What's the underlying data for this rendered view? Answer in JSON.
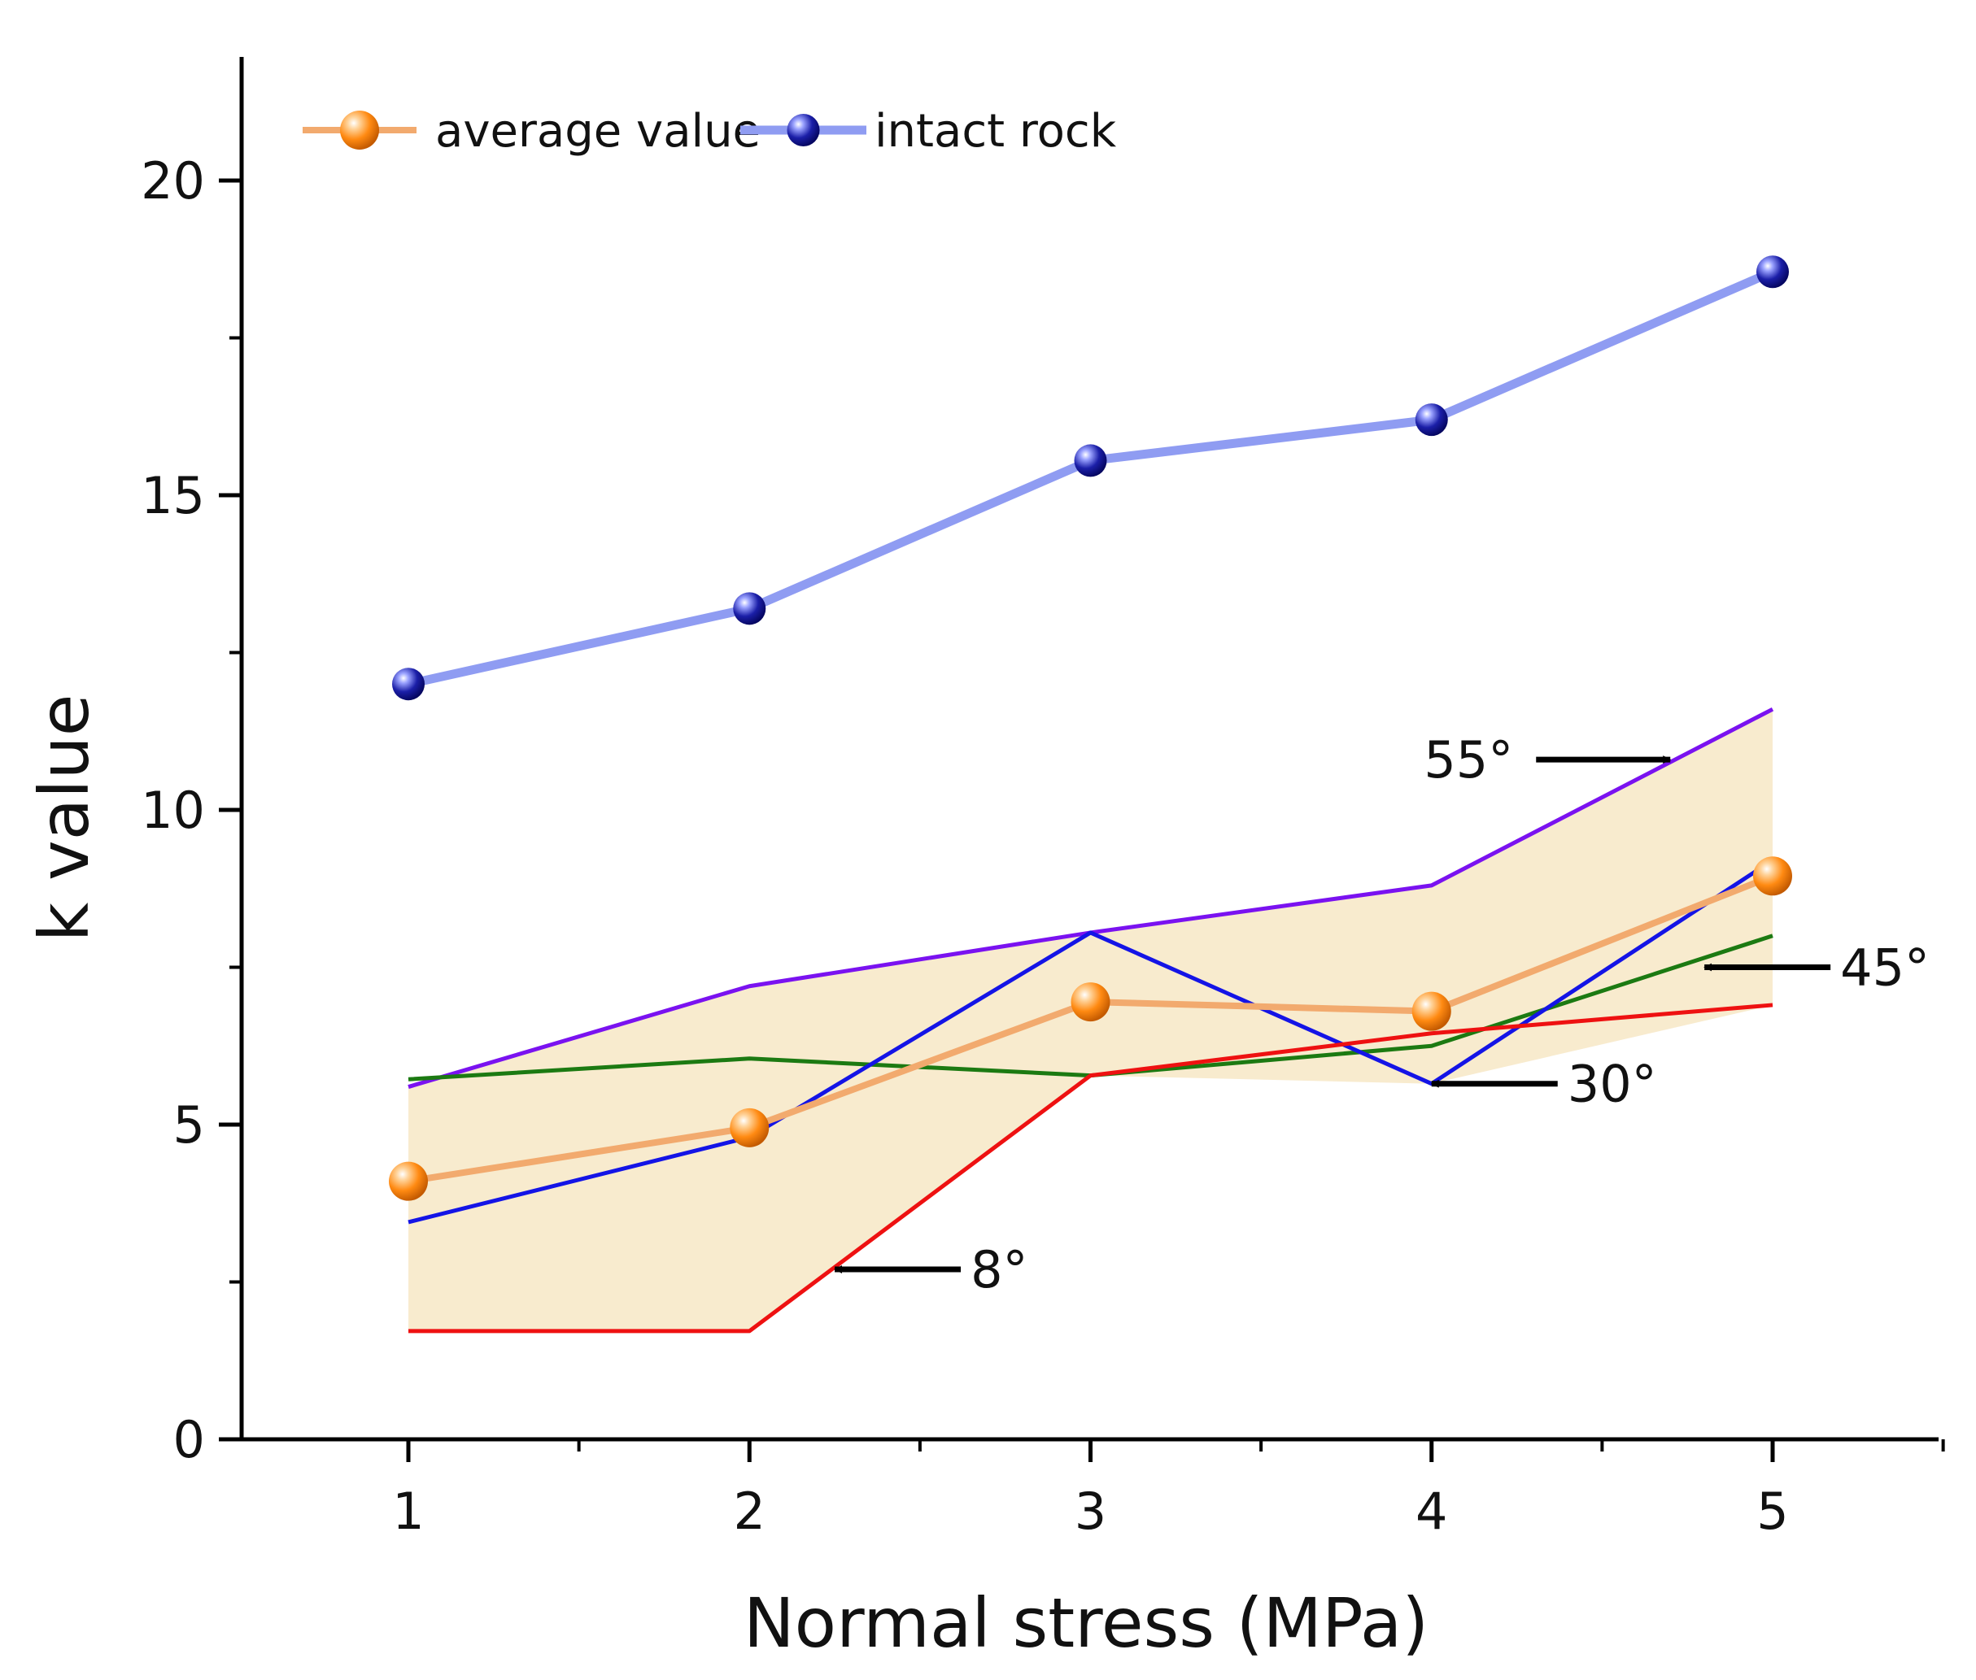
{
  "chart_data": {
    "type": "line",
    "title": "",
    "xlabel": "Normal stress (MPa)",
    "ylabel": "k value",
    "xlim": [
      0.5,
      5.5
    ],
    "ylim": [
      0,
      22
    ],
    "x": [
      1,
      2,
      3,
      4,
      5
    ],
    "xticks": [
      1,
      2,
      3,
      4,
      5
    ],
    "yticks": [
      0,
      5,
      10,
      15,
      20
    ],
    "grid": false,
    "legend_position": "top-left",
    "series": [
      {
        "name": "intact rock",
        "values": [
          12.0,
          13.2,
          15.55,
          16.2,
          18.55
        ],
        "color": "#8f9cf2",
        "marker": "#1b1fa8",
        "in_legend": true,
        "style": "marker-line"
      },
      {
        "name": "average value",
        "values": [
          4.1,
          4.95,
          6.95,
          6.8,
          8.95
        ],
        "color": "#f2aa6e",
        "marker": "#ff8a12",
        "in_legend": true,
        "style": "marker-line"
      },
      {
        "name": "55°",
        "values": [
          5.6,
          7.2,
          8.05,
          8.8,
          11.6
        ],
        "color": "#7a12f0",
        "in_legend": false,
        "style": "thin"
      },
      {
        "name": "45°",
        "values": [
          5.72,
          6.05,
          5.78,
          6.25,
          8.0
        ],
        "color": "#1c7a12",
        "in_legend": false,
        "style": "thin"
      },
      {
        "name": "30°",
        "values": [
          3.45,
          4.8,
          8.05,
          5.65,
          9.2
        ],
        "color": "#1414e6",
        "in_legend": false,
        "style": "thin"
      },
      {
        "name": "8°",
        "values": [
          1.72,
          1.72,
          5.78,
          6.45,
          6.9
        ],
        "color": "#ee1111",
        "in_legend": false,
        "style": "thin"
      }
    ],
    "band": {
      "upper": [
        5.6,
        7.2,
        8.05,
        8.8,
        11.6
      ],
      "lower": [
        1.72,
        1.72,
        5.78,
        5.65,
        6.9
      ],
      "color": "#f5e4bd"
    },
    "annotations": [
      {
        "text": "55°",
        "series": "55°",
        "target_x": 4.7,
        "target_y": 10.8,
        "side": "left"
      },
      {
        "text": "45°",
        "series": "45°",
        "target_x": 4.8,
        "target_y": 7.5,
        "side": "right"
      },
      {
        "text": "30°",
        "series": "30°",
        "target_x": 4.0,
        "target_y": 5.65,
        "side": "right"
      },
      {
        "text": "8°",
        "series": "8°",
        "target_x": 2.25,
        "target_y": 2.7,
        "side": "right"
      }
    ],
    "legend": [
      {
        "label": "average value",
        "color": "#f2aa6e",
        "marker": "#ff8a12"
      },
      {
        "label": "intact rock",
        "color": "#8f9cf2",
        "marker": "#1b1fa8"
      }
    ]
  }
}
